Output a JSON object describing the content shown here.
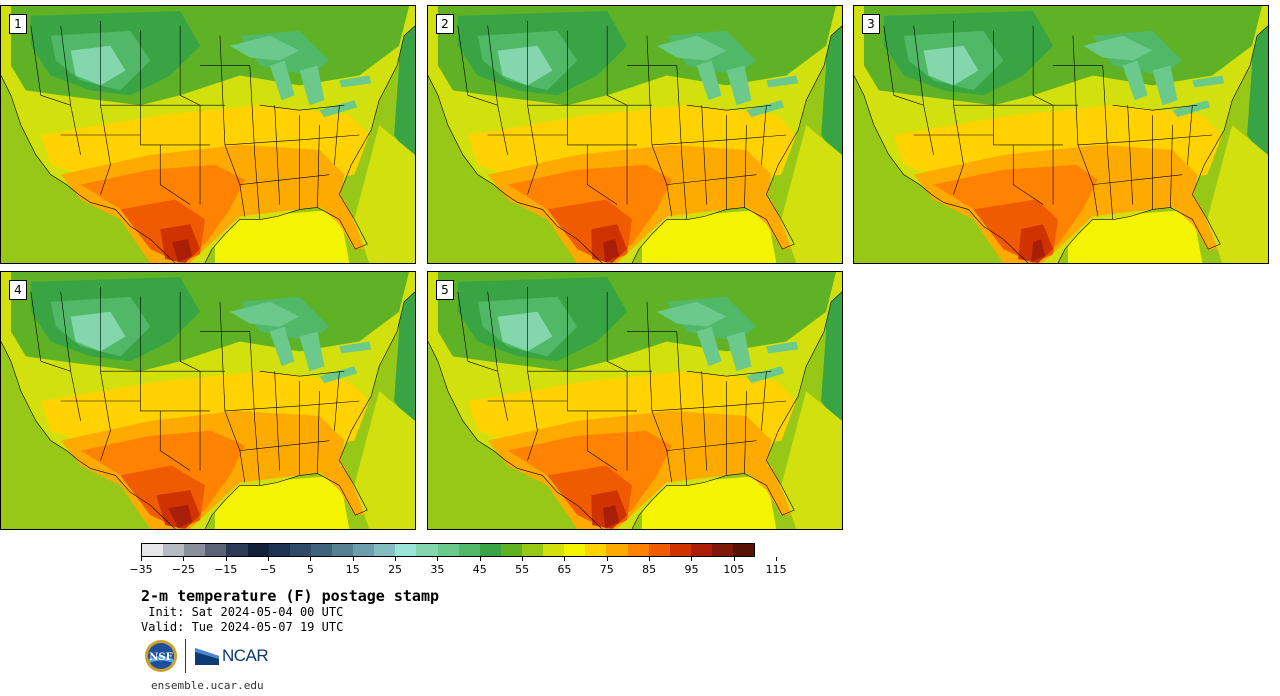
{
  "panels": [
    {
      "label": "1",
      "shift": 0
    },
    {
      "label": "2",
      "shift": 1
    },
    {
      "label": "3",
      "shift": 2
    },
    {
      "label": "4",
      "shift": -1
    },
    {
      "label": "5",
      "shift": 1
    }
  ],
  "colorbar": {
    "min": -35,
    "max": 120,
    "step": 5,
    "tick_labels": [
      "−35",
      "−25",
      "−15",
      "−5",
      "5",
      "15",
      "25",
      "35",
      "45",
      "55",
      "65",
      "75",
      "85",
      "95",
      "105",
      "115"
    ],
    "colors": [
      "#e7e7ea",
      "#b8bac3",
      "#8a8f9c",
      "#5b6377",
      "#2e3a55",
      "#13203a",
      "#1e3352",
      "#2e4a68",
      "#40637d",
      "#557f93",
      "#6c9eab",
      "#84bdc0",
      "#9ce3d7",
      "#84d7ad",
      "#6ac98b",
      "#50b866",
      "#38a443",
      "#5fb225",
      "#97c817",
      "#d2e00d",
      "#f4f400",
      "#ffd200",
      "#ffaa00",
      "#ff8200",
      "#f05a00",
      "#d03200",
      "#a81e08",
      "#7e1808",
      "#561004"
    ]
  },
  "title": "2-m temperature (F) postage stamp",
  "init": " Init: Sat 2024-05-04 00 UTC",
  "valid": "Valid: Tue 2024-05-07 19 UTC",
  "logos": {
    "nsf": "NSF",
    "ncar": "NCAR"
  },
  "site": "ensemble.ucar.edu"
}
